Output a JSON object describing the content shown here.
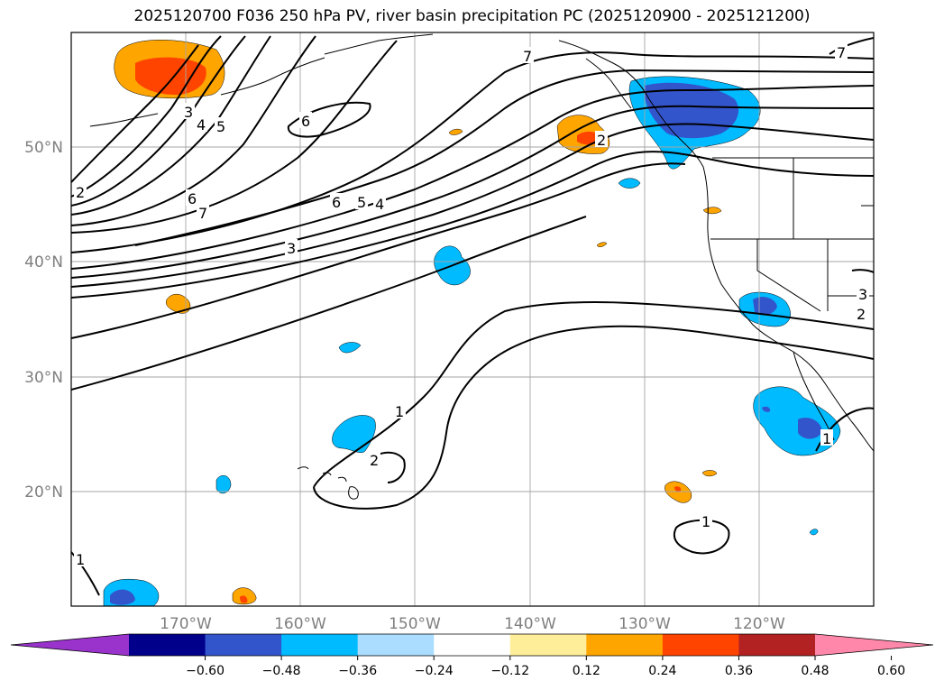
{
  "title": "2025120700 F036 250 hPa PV, river basin precipitation PC (2025120900 - 2025121200)",
  "map": {
    "lon_ticks": [
      "170°W",
      "160°W",
      "150°W",
      "140°W",
      "130°W",
      "120°W"
    ],
    "lat_ticks": [
      "50°N",
      "40°N",
      "30°N",
      "20°N"
    ],
    "lon_range": [
      -180,
      -110
    ],
    "lat_range": [
      10,
      60
    ]
  },
  "contour_labels": [
    "2",
    "3",
    "4",
    "5",
    "6",
    "7",
    "6",
    "5",
    "4",
    "3",
    "6",
    "7",
    "2",
    "3",
    "1",
    "2",
    "1",
    "1",
    "1",
    "7",
    "2"
  ],
  "colorbar": {
    "ticks": [
      "−0.60",
      "−0.48",
      "−0.36",
      "−0.24",
      "−0.12",
      "0.12",
      "0.24",
      "0.36",
      "0.48",
      "0.60"
    ],
    "colors": [
      "#9933cc",
      "#00008b",
      "#3355cc",
      "#00bbff",
      "#aaddff",
      "#ffffff",
      "#ffee99",
      "#ffa500",
      "#ff4400",
      "#b22222",
      "#ff88aa"
    ]
  }
}
